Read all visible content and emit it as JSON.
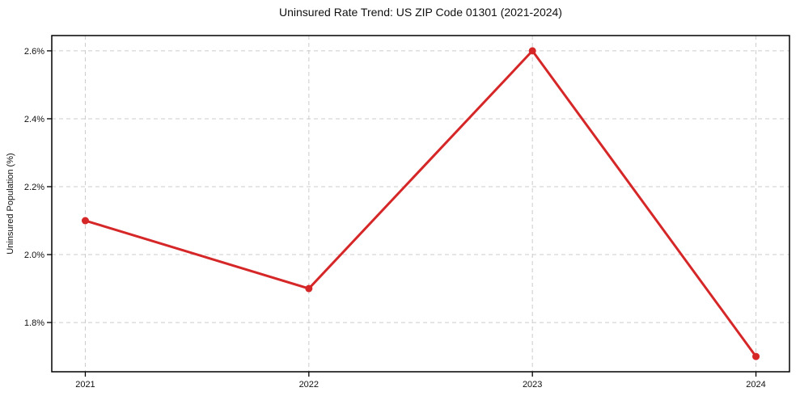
{
  "figure": {
    "title": "Uninsured Rate Trend: US ZIP Code 01301 (2021-2024)"
  },
  "chart_data": {
    "type": "line",
    "title": "Uninsured Rate Trend: US ZIP Code 01301 (2021-2024)",
    "xlabel": "",
    "ylabel": "Uninsured Population (%)",
    "x": [
      2021,
      2022,
      2023,
      2024
    ],
    "x_tick_labels": [
      "2021",
      "2022",
      "2023",
      "2024"
    ],
    "y_tick_values": [
      1.8,
      2.0,
      2.2,
      2.4,
      2.6
    ],
    "y_tick_labels": [
      "1.8%",
      "2.0%",
      "2.2%",
      "2.4%",
      "2.6%"
    ],
    "series": [
      {
        "values": [
          2.1,
          1.9,
          2.6,
          1.7
        ]
      }
    ],
    "xlim": [
      2020.85,
      2024.15
    ],
    "ylim": [
      1.655,
      2.645
    ],
    "grid": true,
    "grid_style": "dashed",
    "legend_position": "none",
    "colors": {
      "line": "#d62728",
      "marker": "#d62728",
      "grid": "#cccccc",
      "spine": "#000000",
      "text": "#111111"
    }
  }
}
